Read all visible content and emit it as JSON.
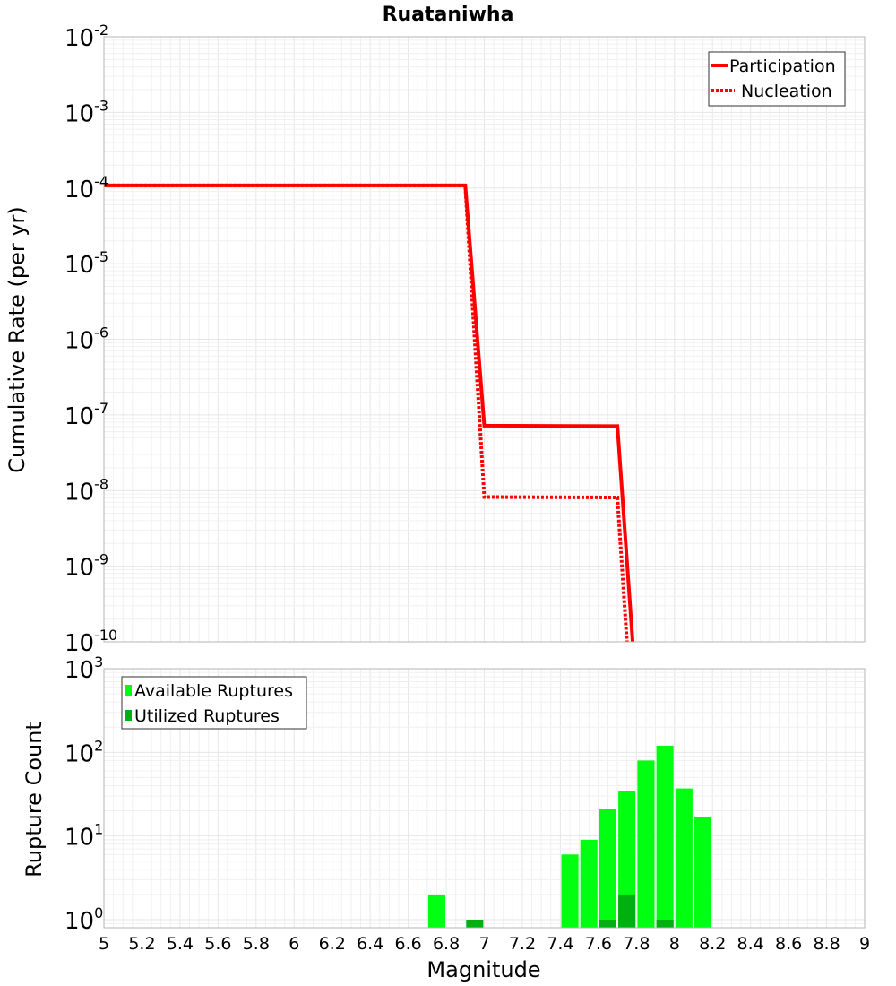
{
  "title": "Ruataniwha",
  "chart_data": [
    {
      "type": "line",
      "title": "Ruataniwha",
      "xlabel": "",
      "ylabel": "Cumulative Rate (per yr)",
      "xlim": [
        5,
        9
      ],
      "ylim": [
        1e-10,
        0.01
      ],
      "yscale": "log",
      "grid": true,
      "legend_position": "top-right",
      "series": [
        {
          "name": "Participation",
          "style": "solid",
          "color": "#ff0000",
          "x": [
            5.0,
            6.9,
            7.0,
            7.7,
            7.78
          ],
          "y": [
            0.000108,
            0.000108,
            7.2e-08,
            7.1e-08,
            1e-10
          ]
        },
        {
          "name": "Nucleation",
          "style": "dotted",
          "color": "#ff0000",
          "x": [
            5.0,
            6.9,
            7.0,
            7.7,
            7.75
          ],
          "y": [
            0.000108,
            0.000108,
            8.2e-09,
            8.1e-09,
            1e-10
          ]
        }
      ]
    },
    {
      "type": "bar",
      "xlabel": "Magnitude",
      "ylabel": "Rupture Count",
      "xlim": [
        5,
        9
      ],
      "ylim": [
        0.8,
        1000
      ],
      "yscale": "log",
      "grid": true,
      "legend_position": "top-left",
      "bar_width": 0.09,
      "series": [
        {
          "name": "Available Ruptures",
          "color": "#00ff10",
          "x": [
            6.75,
            7.45,
            7.55,
            7.65,
            7.75,
            7.85,
            7.95,
            8.05,
            8.15
          ],
          "values": [
            2,
            6,
            9,
            21,
            34,
            80,
            120,
            37,
            17
          ]
        },
        {
          "name": "Utilized Ruptures",
          "color": "#00b010",
          "x": [
            6.95,
            7.65,
            7.75,
            7.95
          ],
          "values": [
            1,
            1,
            2,
            1
          ]
        }
      ]
    }
  ],
  "axes": {
    "x_ticks": [
      "5",
      "5.2",
      "5.4",
      "5.6",
      "5.8",
      "6",
      "6.2",
      "6.4",
      "6.6",
      "6.8",
      "7",
      "7.2",
      "7.4",
      "7.6",
      "7.8",
      "8",
      "8.2",
      "8.4",
      "8.6",
      "8.8",
      "9"
    ],
    "top_y_exponents": [
      "-2",
      "-3",
      "-4",
      "-5",
      "-6",
      "-7",
      "-8",
      "-9",
      "-10"
    ],
    "bottom_y_exponents": [
      "3",
      "2",
      "1",
      "0"
    ],
    "exp_base": "10"
  },
  "legend_top": {
    "participation": "Participation",
    "nucleation": "Nucleation"
  },
  "legend_bottom": {
    "available": "Available Ruptures",
    "utilized": "Utilized Ruptures"
  }
}
